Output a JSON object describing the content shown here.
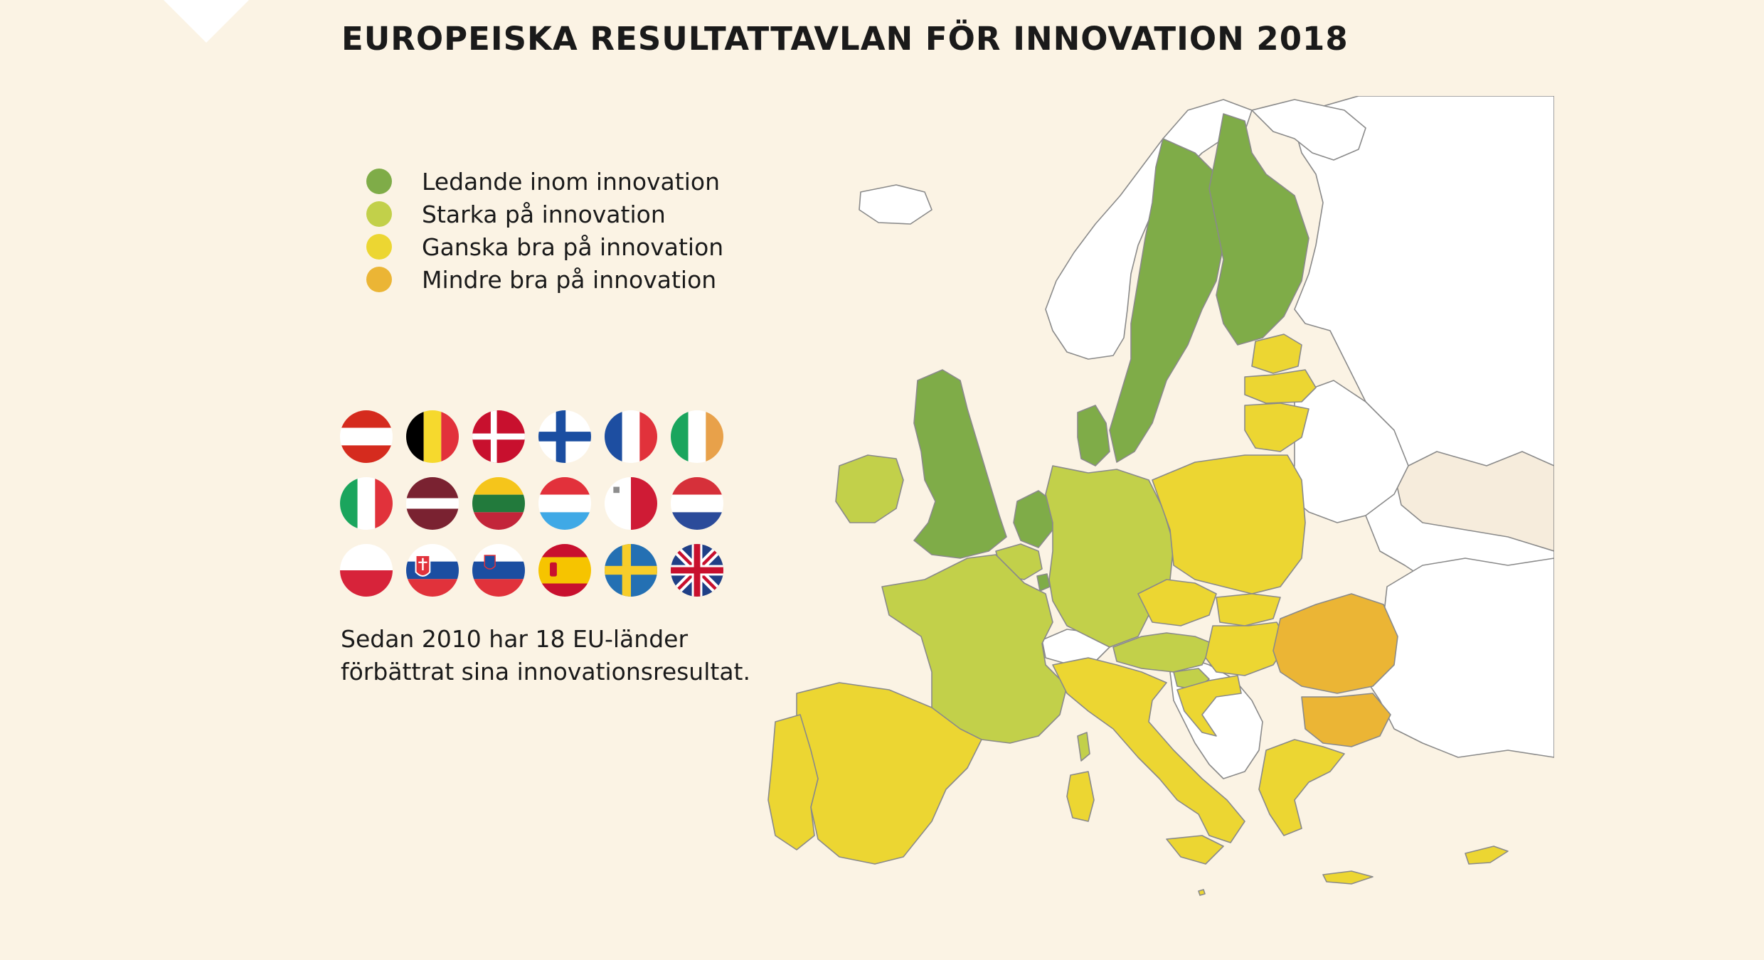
{
  "title": "EUROPEISKA RESULTATTAVLAN FÖR INNOVATION 2018",
  "legend": [
    {
      "label": "Ledande inom innovation",
      "color": "#7fac48"
    },
    {
      "label": "Starka på innovation",
      "color": "#c2d04a"
    },
    {
      "label": "Ganska bra på innovation",
      "color": "#ecd632"
    },
    {
      "label": "Mindre bra på innovation",
      "color": "#ebb535"
    }
  ],
  "colors": {
    "background": "#fbf3e4",
    "non_eu": "#ffffff",
    "border": "#8a8a8a",
    "other_land": "#f6ecdc"
  },
  "flags": [
    {
      "icon": "flag-austria-icon"
    },
    {
      "icon": "flag-belgium-icon"
    },
    {
      "icon": "flag-denmark-icon"
    },
    {
      "icon": "flag-finland-icon"
    },
    {
      "icon": "flag-france-icon"
    },
    {
      "icon": "flag-ireland-icon"
    },
    {
      "icon": "flag-italy-icon"
    },
    {
      "icon": "flag-latvia-icon"
    },
    {
      "icon": "flag-lithuania-icon"
    },
    {
      "icon": "flag-luxembourg-icon"
    },
    {
      "icon": "flag-malta-icon"
    },
    {
      "icon": "flag-netherlands-icon"
    },
    {
      "icon": "flag-poland-icon"
    },
    {
      "icon": "flag-slovakia-icon"
    },
    {
      "icon": "flag-slovenia-icon"
    },
    {
      "icon": "flag-spain-icon"
    },
    {
      "icon": "flag-sweden-icon"
    },
    {
      "icon": "flag-united-kingdom-icon"
    }
  ],
  "note": {
    "line1": "Sedan 2010 har 18 EU-länder",
    "line2": "förbättrat sina innovationsresultat."
  }
}
